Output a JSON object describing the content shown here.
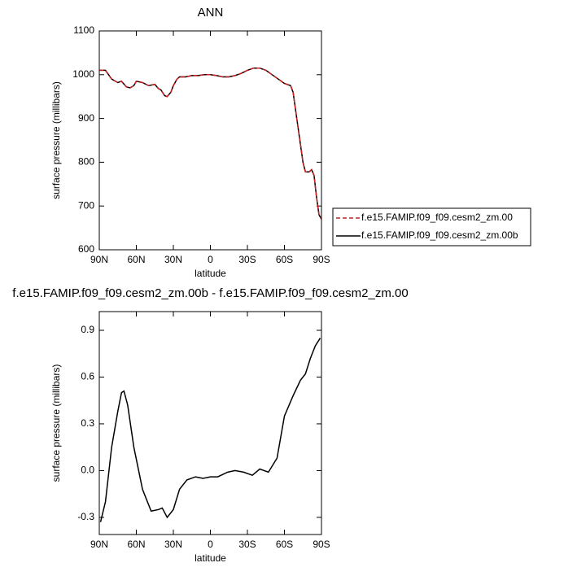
{
  "chart_data": [
    {
      "type": "line",
      "title": "ANN",
      "xlabel": "latitude",
      "ylabel": "surface pressure (millibars)",
      "x": [
        90,
        85,
        80,
        75,
        72,
        68,
        65,
        62,
        60,
        55,
        50,
        45,
        42,
        40,
        37,
        35,
        32,
        30,
        27,
        25,
        20,
        15,
        10,
        5,
        0,
        -5,
        -10,
        -15,
        -20,
        -25,
        -30,
        -35,
        -40,
        -45,
        -50,
        -55,
        -60,
        -65,
        -67,
        -70,
        -73,
        -75,
        -77,
        -80,
        -82,
        -84,
        -86,
        -88,
        -90
      ],
      "series": [
        {
          "name": "f.e15.FAMIP.f09_f09.cesm2_zm.00b",
          "color": "#000000",
          "dash": false,
          "values": [
            1010,
            1010,
            990,
            982,
            985,
            972,
            970,
            975,
            985,
            982,
            975,
            978,
            968,
            965,
            952,
            950,
            960,
            975,
            990,
            995,
            995,
            998,
            998,
            1000,
            1000,
            998,
            995,
            995,
            998,
            1003,
            1010,
            1015,
            1015,
            1010,
            1000,
            990,
            980,
            975,
            960,
            900,
            840,
            800,
            778,
            778,
            783,
            770,
            720,
            680,
            670
          ]
        },
        {
          "name": "f.e15.FAMIP.f09_f09.cesm2_zm.00",
          "color": "#cc1f1f",
          "dash": true,
          "values": [
            1010,
            1010,
            990,
            982,
            985,
            972,
            970,
            975,
            985,
            982,
            975,
            978,
            968,
            965,
            952,
            950,
            960,
            975,
            990,
            995,
            995,
            998,
            998,
            1000,
            1000,
            998,
            995,
            995,
            998,
            1003,
            1010,
            1015,
            1015,
            1010,
            1000,
            990,
            980,
            975,
            960,
            900,
            840,
            800,
            778,
            778,
            783,
            770,
            720,
            680,
            670
          ]
        }
      ],
      "legend": "right",
      "xlim": [
        90,
        -90
      ],
      "xticks": [
        {
          "value": 90,
          "label": "90N"
        },
        {
          "value": 60,
          "label": "60N"
        },
        {
          "value": 30,
          "label": "30N"
        },
        0,
        {
          "value": -30,
          "label": "30S"
        },
        {
          "value": -60,
          "label": "60S"
        },
        {
          "value": -90,
          "label": "90S"
        }
      ],
      "ylim": [
        600,
        1100
      ],
      "yticks": [
        600,
        700,
        800,
        900,
        1000,
        1100
      ]
    },
    {
      "type": "line",
      "title": "f.e15.FAMIP.f09_f09.cesm2_zm.00b - f.e15.FAMIP.f09_f09.cesm2_zm.00",
      "xlabel": "latitude",
      "ylabel": "surface pressure (millibars)",
      "x": [
        89,
        85,
        80,
        75,
        72,
        70,
        67,
        62,
        55,
        48,
        42,
        39,
        35,
        30,
        25,
        19,
        12,
        6,
        0,
        -6,
        -14,
        -20,
        -27,
        -34,
        -40,
        -47,
        -54,
        -60,
        -67,
        -73,
        -77,
        -81,
        -85,
        -89
      ],
      "series": [
        {
          "color": "#000000",
          "dash": false,
          "values": [
            -0.33,
            -0.2,
            0.15,
            0.38,
            0.5,
            0.51,
            0.42,
            0.15,
            -0.12,
            -0.26,
            -0.25,
            -0.24,
            -0.3,
            -0.25,
            -0.12,
            -0.06,
            -0.04,
            -0.05,
            -0.04,
            -0.04,
            -0.01,
            0.0,
            -0.01,
            -0.03,
            0.01,
            -0.01,
            0.08,
            0.35,
            0.48,
            0.58,
            0.62,
            0.72,
            0.8,
            0.85
          ]
        }
      ],
      "xlim": [
        90,
        -90
      ],
      "xticks": [
        {
          "value": 90,
          "label": "90N"
        },
        {
          "value": 60,
          "label": "60N"
        },
        {
          "value": 30,
          "label": "30N"
        },
        0,
        {
          "value": -30,
          "label": "30S"
        },
        {
          "value": -60,
          "label": "60S"
        },
        {
          "value": -90,
          "label": "90S"
        }
      ],
      "ylim": [
        -0.41,
        1.02
      ],
      "yticks": [
        -0.3,
        {
          "value": 0,
          "label": "0.0"
        },
        0.3,
        0.6,
        0.9
      ]
    }
  ]
}
